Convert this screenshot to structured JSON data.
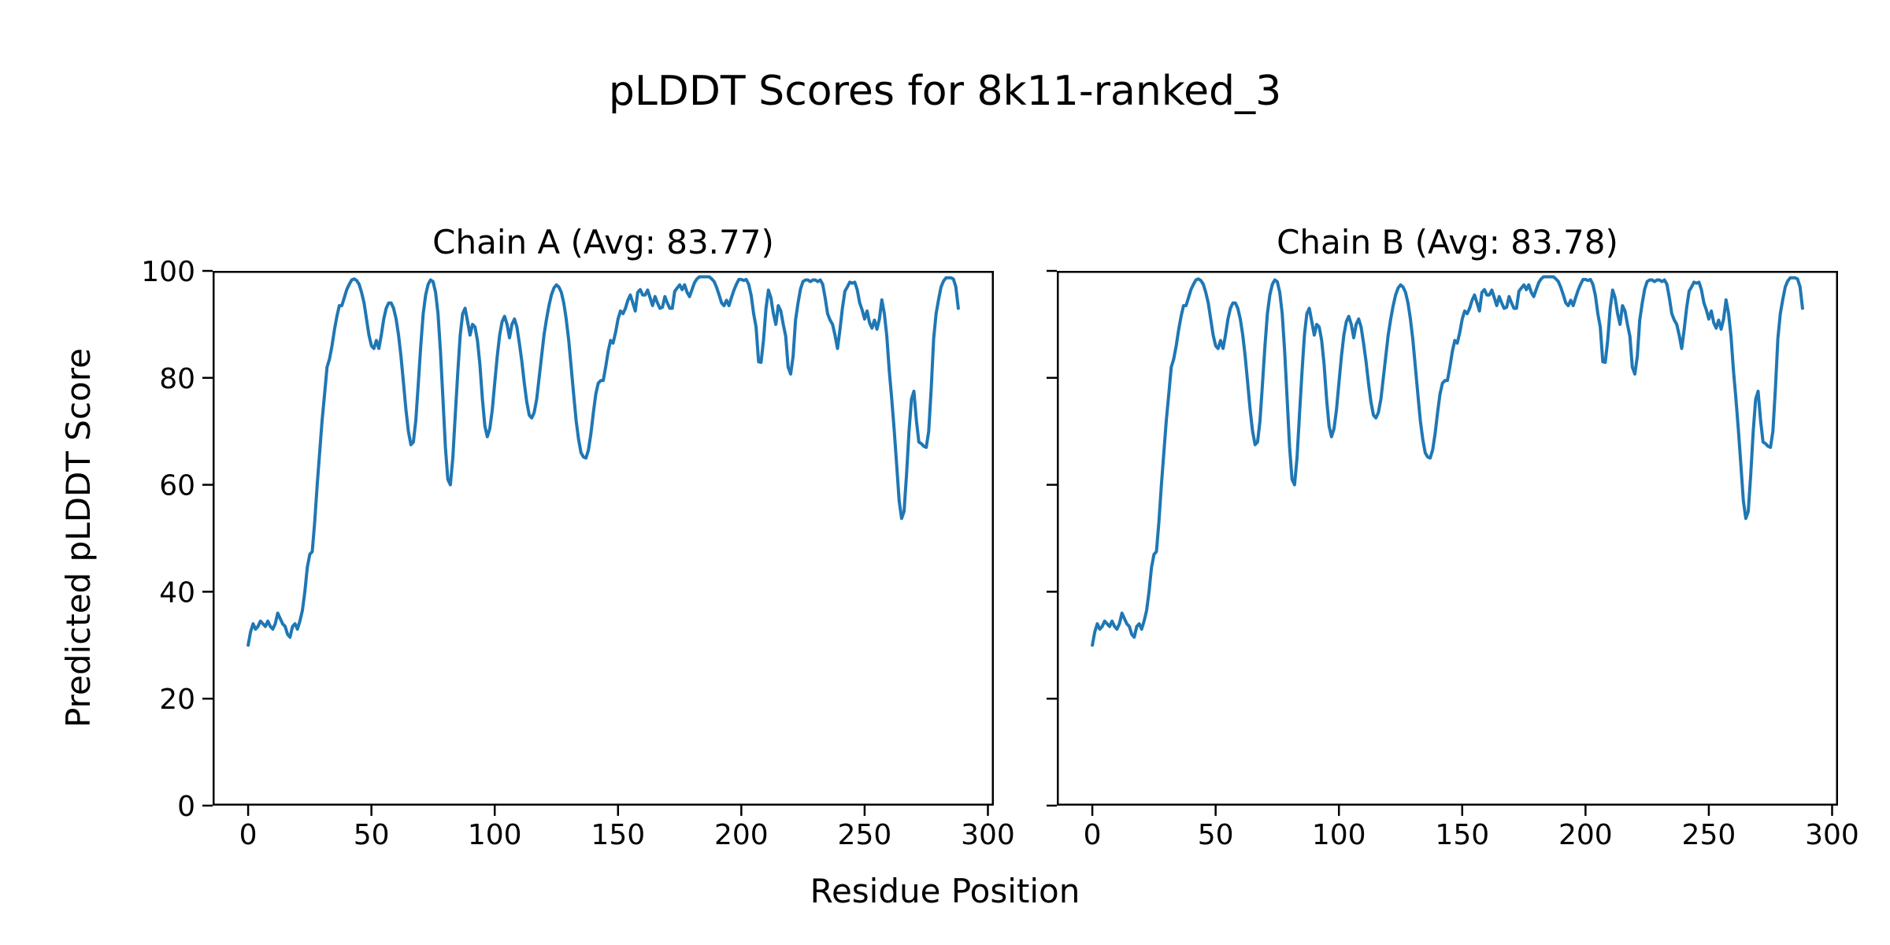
{
  "figure": {
    "title": "pLDDT Scores for 8k11-ranked_3",
    "background_color": "#ffffff",
    "text_color": "#000000"
  },
  "chart_data": {
    "type": "line",
    "title": "pLDDT Scores for 8k11-ranked_3",
    "xlabel": "Residue Position",
    "ylabel": "Predicted pLDDT Score",
    "x_start": 0,
    "x_step": 1,
    "xlim": [
      -14.4,
      302.4
    ],
    "ylim": [
      0,
      100
    ],
    "xticks": [
      0,
      50,
      100,
      150,
      200,
      250,
      300
    ],
    "yticks": [
      0,
      20,
      40,
      60,
      80,
      100
    ],
    "grid": false,
    "legend": "none",
    "line_color": "#1f77b4",
    "axis_color": "#000000",
    "panels": [
      {
        "id": "chain-a",
        "title": "Chain A (Avg: 83.77)",
        "avg": 83.77,
        "values": [
          30,
          32.5,
          34,
          33,
          33.5,
          34.5,
          34,
          33.5,
          34.5,
          33.5,
          33,
          34,
          36,
          35,
          34,
          33.5,
          32,
          31.5,
          33.5,
          34,
          33,
          34.5,
          36.5,
          40,
          44.5,
          47,
          47.5,
          53,
          60,
          66,
          72,
          77,
          82,
          83.5,
          86,
          89,
          91.5,
          93.5,
          93.5,
          95,
          96.5,
          97.5,
          98.3,
          98.5,
          98.2,
          97.5,
          96,
          94,
          91,
          88,
          86,
          85.5,
          87,
          85.5,
          88,
          91,
          93,
          94,
          94,
          93,
          91,
          88,
          84,
          79,
          74,
          70,
          67.5,
          68,
          72,
          79,
          86,
          92,
          95.5,
          97.5,
          98.3,
          98,
          96,
          92,
          85,
          76,
          67,
          61,
          60,
          65,
          73,
          81,
          88,
          92,
          93,
          90.5,
          88,
          90,
          89.5,
          87,
          82.5,
          76,
          71,
          69,
          70.5,
          74,
          79,
          84,
          88,
          90.5,
          91.5,
          90,
          87.5,
          90,
          91,
          89.5,
          86.5,
          83,
          79,
          75.5,
          73,
          72.5,
          73.5,
          76,
          80,
          84,
          88,
          91,
          93.5,
          95.5,
          96.8,
          97.4,
          97,
          96,
          94,
          91,
          87,
          82,
          77,
          72,
          68.5,
          66,
          65.2,
          65,
          66.5,
          69.5,
          73.5,
          77,
          79,
          79.5,
          79.5,
          82,
          85,
          87,
          86.5,
          88.5,
          91,
          92.5,
          92,
          93,
          94.5,
          95.5,
          94,
          92.5,
          96,
          96.5,
          95.5,
          95.5,
          96.4,
          95,
          93.5,
          95.2,
          94,
          93,
          93.2,
          95.2,
          94,
          93,
          93,
          96.2,
          96.8,
          97.4,
          96.5,
          97.4,
          96,
          95.2,
          96.5,
          97.8,
          98.5,
          98.9,
          98.9,
          98.9,
          98.9,
          98.9,
          98.5,
          98,
          96.9,
          95.5,
          94,
          93.5,
          94.5,
          93.5,
          95,
          96.4,
          97.5,
          98.4,
          98.4,
          98.2,
          98.4,
          97.5,
          95.4,
          92,
          89.5,
          83,
          82.9,
          87,
          93,
          96.4,
          95,
          92,
          90,
          93.5,
          92.5,
          90,
          87.8,
          82,
          80.7,
          84,
          90.8,
          94,
          96.6,
          98,
          98.3,
          98.3,
          98,
          98.3,
          98.3,
          98,
          98.3,
          97.5,
          95,
          92,
          90.8,
          90,
          88,
          85.5,
          89,
          93,
          96.2,
          97,
          97.9,
          97.7,
          97.9,
          96.5,
          94,
          92.7,
          91,
          92.5,
          90.3,
          89.3,
          90.8,
          89.1,
          91,
          94.6,
          92,
          87.8,
          81.4,
          76,
          70.2,
          63.8,
          57,
          53.7,
          55,
          62,
          70,
          76,
          77.5,
          72,
          68,
          67.7,
          67.2,
          67,
          70,
          78,
          87.3,
          92,
          94.7,
          97,
          98.1,
          98.7,
          98.7,
          98.7,
          98.5,
          97,
          93
        ]
      },
      {
        "id": "chain-b",
        "title": "Chain B (Avg: 83.78)",
        "avg": 83.78,
        "values": [
          30,
          32.5,
          34,
          33,
          33.5,
          34.5,
          34,
          33.5,
          34.5,
          33.5,
          33,
          34,
          36,
          35,
          34,
          33.5,
          32,
          31.5,
          33.5,
          34,
          33,
          34.5,
          36.5,
          40,
          44.5,
          47,
          47.5,
          53,
          60,
          66,
          72,
          77,
          82,
          83.5,
          86,
          89,
          91.5,
          93.5,
          93.5,
          95,
          96.5,
          97.5,
          98.3,
          98.5,
          98.2,
          97.5,
          96,
          94,
          91,
          88,
          86,
          85.5,
          87,
          85.5,
          88,
          91,
          93,
          94,
          94,
          93,
          91,
          88,
          84,
          79,
          74,
          70,
          67.5,
          68,
          72,
          79,
          86,
          92,
          95.5,
          97.5,
          98.3,
          98,
          96,
          92,
          85,
          76,
          67,
          61,
          60,
          65,
          73,
          81,
          88,
          92,
          93,
          90.5,
          88,
          90,
          89.5,
          87,
          82.5,
          76,
          71,
          69,
          70.5,
          74,
          79,
          84,
          88,
          90.5,
          91.5,
          90,
          87.5,
          90,
          91,
          89.5,
          86.5,
          83,
          79,
          75.5,
          73,
          72.5,
          73.5,
          76,
          80,
          84,
          88,
          91,
          93.5,
          95.5,
          96.8,
          97.4,
          97,
          96,
          94,
          91,
          87,
          82,
          77,
          72,
          68.5,
          66,
          65.2,
          65,
          66.5,
          69.5,
          73.5,
          77,
          79,
          79.5,
          79.5,
          82,
          85,
          87,
          86.5,
          88.5,
          91,
          92.5,
          92,
          93,
          94.5,
          95.5,
          94,
          92.5,
          96,
          96.5,
          95.5,
          95.5,
          96.4,
          95,
          93.5,
          95.2,
          94,
          93,
          93.2,
          95.2,
          94,
          93,
          93,
          96.2,
          96.8,
          97.4,
          96.5,
          97.4,
          96,
          95.2,
          96.5,
          97.8,
          98.5,
          98.9,
          98.9,
          98.9,
          98.9,
          98.9,
          98.5,
          98,
          96.9,
          95.5,
          94,
          93.5,
          94.5,
          93.5,
          95,
          96.4,
          97.5,
          98.4,
          98.4,
          98.2,
          98.4,
          97.5,
          95.4,
          92,
          89.5,
          83,
          82.9,
          87,
          93,
          96.4,
          95,
          92,
          90,
          93.5,
          92.5,
          90,
          87.8,
          82,
          80.7,
          84,
          90.8,
          94,
          96.6,
          98,
          98.3,
          98.3,
          98,
          98.3,
          98.3,
          98,
          98.3,
          97.5,
          95,
          92,
          90.8,
          90,
          88,
          85.5,
          89,
          93,
          96.2,
          97,
          97.9,
          97.7,
          97.9,
          96.5,
          94,
          92.7,
          91,
          92.5,
          90.3,
          89.3,
          90.8,
          89.1,
          91,
          94.6,
          92,
          87.8,
          81.4,
          76,
          70.2,
          63.8,
          57,
          53.7,
          55,
          62,
          70,
          76,
          77.5,
          72,
          68,
          67.7,
          67.2,
          67,
          70,
          78,
          87.3,
          92,
          94.7,
          97,
          98.1,
          98.7,
          98.7,
          98.7,
          98.5,
          97,
          93
        ]
      }
    ]
  }
}
